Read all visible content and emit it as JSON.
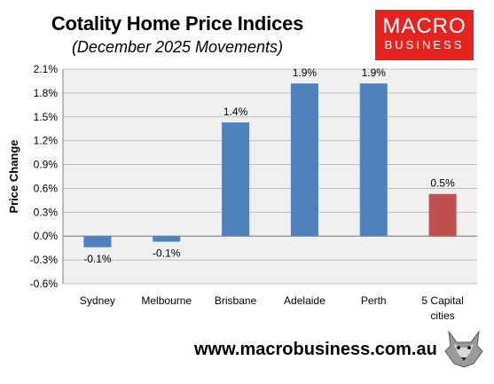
{
  "header": {
    "title": "Cotality Home Price Indices",
    "subtitle": "(December 2025 Movements)"
  },
  "logo": {
    "line1": "MACRO",
    "line2": "BUSINESS",
    "color": "#e5231f"
  },
  "footer": {
    "url": "www.macrobusiness.com.au",
    "icon": "wolf-icon"
  },
  "colors": {
    "plot_bg": "#f0f0f0",
    "bar_blue": "#4f81bd",
    "bar_red": "#c0504d"
  },
  "chart_data": {
    "type": "bar",
    "title": "Cotality Home Price Indices",
    "subtitle": "(December 2025 Movements)",
    "ylabel": "Price Change",
    "xlabel": "",
    "categories": [
      "Sydney",
      "Melbourne",
      "Brisbane",
      "Adelaide",
      "Perth",
      "5 Capital cities"
    ],
    "category_lines": [
      [
        "Sydney"
      ],
      [
        "Melbourne"
      ],
      [
        "Brisbane"
      ],
      [
        "Adelaide"
      ],
      [
        "Perth"
      ],
      [
        "5 Capital",
        "cities"
      ]
    ],
    "values": [
      -0.14,
      -0.07,
      1.43,
      1.92,
      1.92,
      0.53
    ],
    "data_labels": [
      "-0.1%",
      "-0.1%",
      "1.4%",
      "1.9%",
      "1.9%",
      "0.5%"
    ],
    "bar_colors": [
      "#4f81bd",
      "#4f81bd",
      "#4f81bd",
      "#4f81bd",
      "#4f81bd",
      "#c0504d"
    ],
    "ylim": [
      -0.6,
      2.1
    ],
    "yticks": [
      -0.6,
      -0.3,
      0.0,
      0.3,
      0.6,
      0.9,
      1.2,
      1.5,
      1.8,
      2.1
    ],
    "ytick_labels": [
      "-0.6%",
      "-0.3%",
      "0.0%",
      "0.3%",
      "0.6%",
      "0.9%",
      "1.2%",
      "1.5%",
      "1.8%",
      "2.1%"
    ],
    "grid": true,
    "legend": "none"
  }
}
